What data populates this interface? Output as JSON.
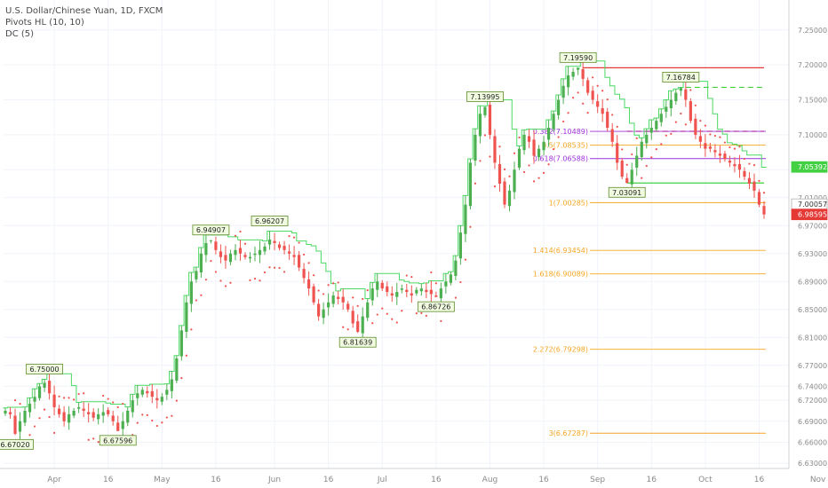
{
  "legend": {
    "title": "U.S. Dollar/Chinese Yuan, 1D, FXCM",
    "pivots": "Pivots HL (10, 10)",
    "dc": "DC (5)"
  },
  "colors": {
    "up": "#4caf50",
    "down": "#ef5350",
    "dc": "#4cd964",
    "psar": "#ef5350",
    "fib": "#f5a623",
    "fib_mid": "#9b30d9",
    "resistance": "#e53935",
    "support": "#43d043",
    "grid": "#f0f3fa",
    "axis_text": "#8a8a8a"
  },
  "chart_data": {
    "type": "candlestick",
    "ylim": [
      6.63,
      7.27
    ],
    "y_ticks": [
      "7.25000",
      "7.20000",
      "7.15000",
      "7.10000",
      "7.05000",
      "7.01000",
      "6.97000",
      "6.93000",
      "6.89000",
      "6.85000",
      "6.81000",
      "6.77000",
      "6.74000",
      "6.72000",
      "6.69000",
      "6.66000",
      "6.63000"
    ],
    "x_ticks": [
      "Apr",
      "16",
      "May",
      "16",
      "Jun",
      "16",
      "Jul",
      "16",
      "Aug",
      "16",
      "Sep",
      "16",
      "Oct",
      "16",
      "Nov"
    ],
    "price_path": [
      6.705,
      6.7,
      6.672,
      6.69,
      6.705,
      6.715,
      6.725,
      6.74,
      6.745,
      6.73,
      6.71,
      6.7,
      6.69,
      6.7,
      6.705,
      6.71,
      6.705,
      6.7,
      6.695,
      6.7,
      6.703,
      6.7,
      6.69,
      6.676,
      6.69,
      6.705,
      6.72,
      6.73,
      6.735,
      6.73,
      6.725,
      6.72,
      6.725,
      6.735,
      6.75,
      6.78,
      6.82,
      6.86,
      6.89,
      6.905,
      6.93,
      6.945,
      6.949,
      6.935,
      6.925,
      6.92,
      6.93,
      6.935,
      6.93,
      6.925,
      6.925,
      6.93,
      6.935,
      6.94,
      6.95,
      6.945,
      6.938,
      6.935,
      6.93,
      6.925,
      6.91,
      6.895,
      6.88,
      6.86,
      6.84,
      6.85,
      6.86,
      6.87,
      6.865,
      6.86,
      6.85,
      6.83,
      6.818,
      6.84,
      6.86,
      6.88,
      6.89,
      6.88,
      6.875,
      6.87,
      6.875,
      6.88,
      6.875,
      6.87,
      6.878,
      6.88,
      6.875,
      6.872,
      6.868,
      6.88,
      6.89,
      6.9,
      6.92,
      6.96,
      7.0,
      7.06,
      7.1,
      7.13,
      7.14,
      7.1,
      7.06,
      7.03,
      7.0,
      7.02,
      7.05,
      7.08,
      7.1,
      7.09,
      7.07,
      7.08,
      7.09,
      7.11,
      7.13,
      7.15,
      7.17,
      7.185,
      7.19,
      7.196,
      7.18,
      7.16,
      7.15,
      7.14,
      7.13,
      7.11,
      7.09,
      7.06,
      7.04,
      7.031,
      7.05,
      7.07,
      7.09,
      7.1,
      7.11,
      7.12,
      7.13,
      7.14,
      7.15,
      7.16,
      7.167,
      7.15,
      7.12,
      7.1,
      7.09,
      7.08,
      7.08,
      7.075,
      7.07,
      7.065,
      7.06,
      7.055,
      7.05,
      7.04,
      7.03,
      7.02,
      7.0,
      6.986
    ],
    "pivots": [
      {
        "label": "6.67020",
        "i": 2,
        "pos": "below"
      },
      {
        "label": "6.75000",
        "i": 8,
        "pos": "above"
      },
      {
        "label": "6.67596",
        "i": 23,
        "pos": "below"
      },
      {
        "label": "6.94907",
        "i": 42,
        "pos": "above"
      },
      {
        "label": "6.96207",
        "i": 54,
        "pos": "above"
      },
      {
        "label": "6.81639",
        "i": 72,
        "pos": "below"
      },
      {
        "label": "6.86726",
        "i": 88,
        "pos": "below"
      },
      {
        "label": "7.13995",
        "i": 98,
        "pos": "above"
      },
      {
        "label": "7.19590",
        "i": 117,
        "pos": "above"
      },
      {
        "label": "7.03091",
        "i": 127,
        "pos": "below"
      },
      {
        "label": "7.16784",
        "i": 138,
        "pos": "above"
      }
    ],
    "fib_levels": [
      {
        "label": "0.382(7.10489)",
        "value": 7.10489,
        "kind": "mid"
      },
      {
        "label": "0.5(7.08535)",
        "value": 7.08535,
        "kind": "fib"
      },
      {
        "label": "0.618(7.06588)",
        "value": 7.06588,
        "kind": "mid"
      },
      {
        "label": "1(7.00285)",
        "value": 7.00285,
        "kind": "fib"
      },
      {
        "label": "1.414(6.93454)",
        "value": 6.93454,
        "kind": "fib"
      },
      {
        "label": "1.618(6.90089)",
        "value": 6.90089,
        "kind": "fib"
      },
      {
        "label": "2.272(6.79298)",
        "value": 6.79298,
        "kind": "fib"
      },
      {
        "label": "3(6.67287)",
        "value": 6.67287,
        "kind": "fib"
      }
    ],
    "hlines": [
      {
        "value": 7.1959,
        "color": "resistance",
        "dash": false,
        "from": 118
      },
      {
        "value": 7.16784,
        "color": "support",
        "dash": true,
        "from": 139
      },
      {
        "value": 7.10489,
        "color": "resistance",
        "dash": true,
        "from": 127
      },
      {
        "value": 7.03091,
        "color": "support",
        "dash": false,
        "from": 127
      }
    ],
    "price_tags": [
      {
        "label": "7.05392",
        "value": 7.05392,
        "color": "support"
      },
      {
        "label": "7.00057",
        "value": 7.00057,
        "color": "white"
      },
      {
        "label": "6.98595",
        "value": 6.98595,
        "color": "resistance"
      }
    ]
  }
}
